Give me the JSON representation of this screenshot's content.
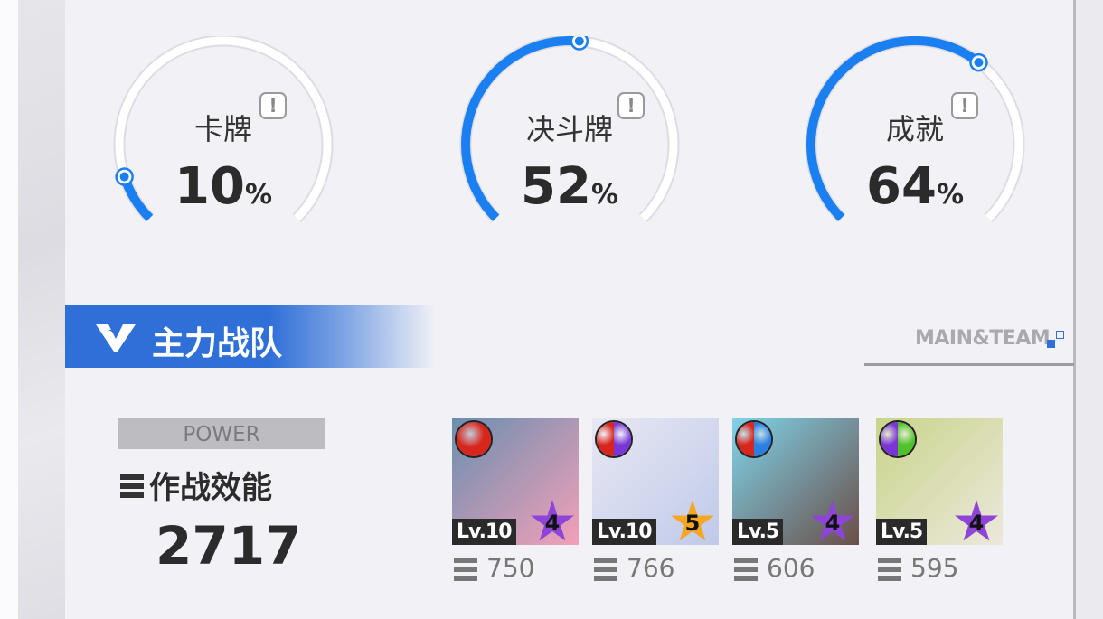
{
  "gauges": [
    {
      "label": "卡牌",
      "value": "10",
      "unit": "%",
      "percent": 10
    },
    {
      "label": "决斗牌",
      "value": "52",
      "unit": "%",
      "percent": 52
    },
    {
      "label": "成就",
      "value": "64",
      "unit": "%",
      "percent": 64
    }
  ],
  "info_icon": "!",
  "colors": {
    "accent": "#1a7ff0",
    "banner": "#2f6fd8",
    "star_purple": "#8e44d9",
    "star_gold": "#f5a623"
  },
  "team": {
    "title": "主力战队",
    "subtitle": "MAIN&TEAM",
    "power_label": "POWER",
    "effect_label": "作战效能",
    "effect_value": "2717",
    "members": [
      {
        "level": "Lv.10",
        "stars": "4",
        "power": "750",
        "elements": [
          "#d7261b"
        ],
        "art": [
          "#6a8fb0",
          "#f3a0b8"
        ],
        "star_color": "#8e44d9"
      },
      {
        "level": "Lv.10",
        "stars": "5",
        "power": "766",
        "elements": [
          "#d7261b",
          "#7a35d6"
        ],
        "art": [
          "#e8e8f4",
          "#bfc9e8"
        ],
        "star_color": "#f5a623"
      },
      {
        "level": "Lv.5",
        "stars": "4",
        "power": "606",
        "elements": [
          "#d7261b",
          "#2a7fe0"
        ],
        "art": [
          "#7fd3ea",
          "#6a4e48"
        ],
        "star_color": "#8e44d9"
      },
      {
        "level": "Lv.5",
        "stars": "4",
        "power": "595",
        "elements": [
          "#7a35d6",
          "#4fc12a"
        ],
        "art": [
          "#c9d48a",
          "#ece8dc"
        ],
        "star_color": "#8e44d9"
      }
    ]
  }
}
